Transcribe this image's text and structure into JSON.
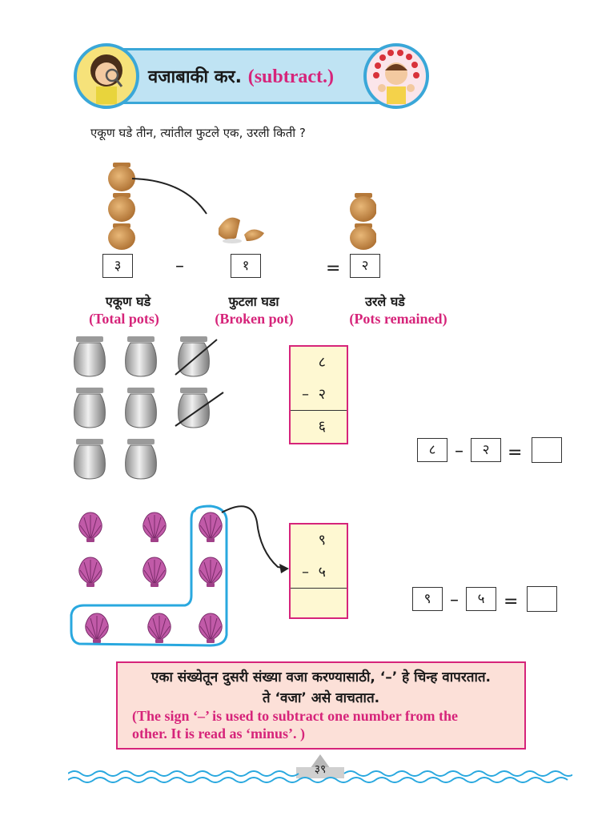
{
  "header": {
    "title_mr": "वजाबाकी कर.",
    "title_en": "(subtract.)"
  },
  "question": "एकूण घडे तीन, त्यांतील फुटले एक, उरली किती ?",
  "pots_equation": {
    "total": "३",
    "minus": "–",
    "broken": "१",
    "equals": "=",
    "remaining": "२",
    "labels": [
      {
        "mr": "एकूण घडे",
        "en": "(Total pots)"
      },
      {
        "mr": "फुटला घडा",
        "en": "(Broken pot)"
      },
      {
        "mr": "उरले घडे",
        "en": "(Pots remained)"
      }
    ]
  },
  "vessels_problem": {
    "column": {
      "top": "८",
      "minus": "–",
      "subtrahend": "२",
      "result": "६"
    },
    "equation": {
      "a": "८",
      "minus": "–",
      "b": "२",
      "equals": "=",
      "answer": ""
    }
  },
  "shells_problem": {
    "column": {
      "top": "९",
      "minus": "–",
      "subtrahend": "५",
      "result": ""
    },
    "equation": {
      "a": "९",
      "minus": "–",
      "b": "५",
      "equals": "=",
      "answer": ""
    }
  },
  "note": {
    "line1": "एका संख्येतून दुसरी संख्या वजा करण्यासाठी, ‘–’ हे चिन्ह वापरतात.",
    "line2": "ते ‘वजा’ असे वाचतात.",
    "line3": "(The sign ‘–’ is used to subtract one number from the",
    "line4": "other. It is read as ‘minus’. )"
  },
  "page_number": "३९",
  "colors": {
    "accent_pink": "#d6247a",
    "banner_blue": "#3aa7d8",
    "pot_brown": "#c0843f",
    "shell_purple": "#b44aa0"
  }
}
